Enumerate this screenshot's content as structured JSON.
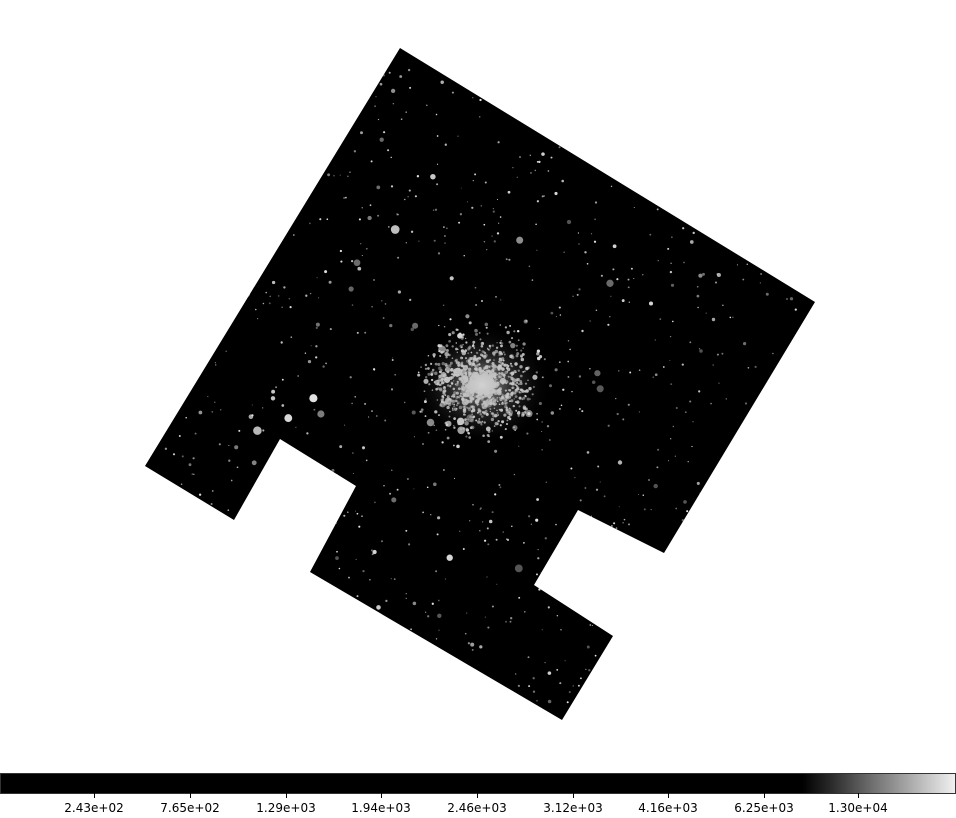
{
  "image": {
    "description_icon": "star-field-icon",
    "background_color": "#ffffff",
    "field_color": "#000000",
    "star_color": "#e6e6e6"
  },
  "colorbar": {
    "colormap": "grayscale",
    "tick_labels": [
      "2.43e+02",
      "7.65e+02",
      "1.29e+03",
      "1.94e+03",
      "2.46e+03",
      "3.12e+03",
      "4.16e+03",
      "6.25e+03",
      "1.30e+04"
    ]
  }
}
